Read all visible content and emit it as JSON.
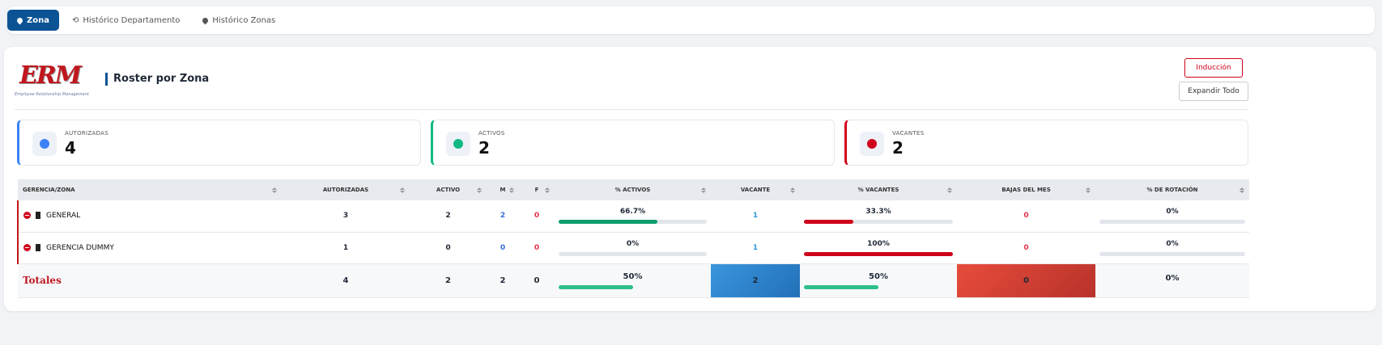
{
  "tabs": [
    "Zona",
    "Histórico Departamento",
    "Histórico Zonas"
  ],
  "header": {
    "logo_text": "ERM",
    "logo_subtitle": "Employee Relationship Management",
    "title": "Roster por Zona",
    "buttons": [
      "Inducción",
      "Expandir Todo"
    ]
  },
  "cards": [
    {
      "label": "AUTORIZADAS",
      "value": "4"
    },
    {
      "label": "ACTIVOS",
      "value": "2"
    },
    {
      "label": "VACANTES",
      "value": "2"
    }
  ],
  "table": {
    "columns": [
      "GERENCIA/ZONA",
      "AUTORIZADAS",
      "ACTIVO",
      "M",
      "F",
      "% ACTIVOS",
      "VACANTE",
      "% VACANTES",
      "BAJAS DEL MES",
      "% DE ROTACIÓN"
    ],
    "rows": [
      [
        "GENERAL",
        "3",
        "2",
        "2",
        "0",
        "66.7%",
        "1",
        "33.3%",
        "0",
        "0%"
      ],
      [
        "GERENCIA DUMMY",
        "1",
        "0",
        "0",
        "0",
        "0%",
        "1",
        "100%",
        "0",
        "0%"
      ]
    ],
    "totals": [
      "Totales",
      "4",
      "2",
      "2",
      "0",
      "50%",
      "2",
      "50%",
      "0",
      "0%"
    ]
  }
}
